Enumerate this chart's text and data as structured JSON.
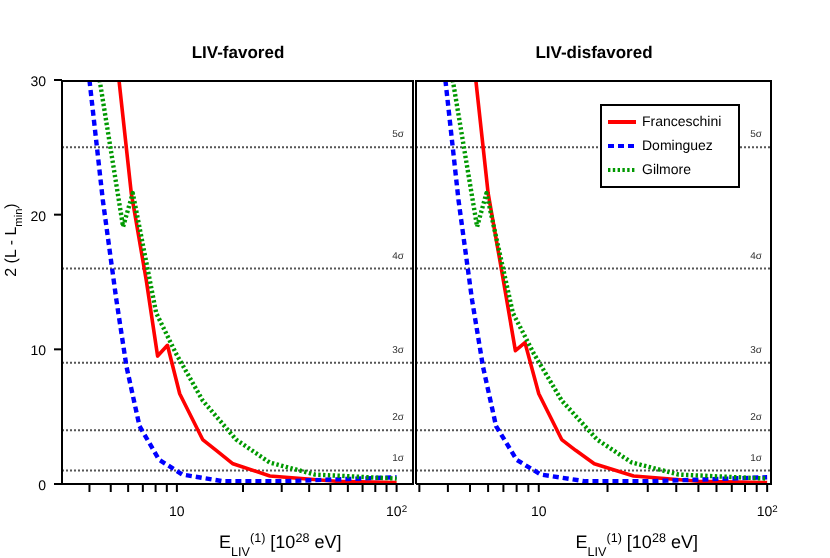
{
  "chart_data": [
    {
      "type": "line",
      "title": "LIV-favored",
      "xlabel": "E$_{LIV}$$^{(1)}$ [10$^{28}$ eV]",
      "ylabel": "2 (L - L$_{min}$)",
      "log": "x",
      "xlim": [
        3,
        120
      ],
      "xticks": [
        {
          "value": 4,
          "label": null
        },
        {
          "value": 5,
          "label": null
        },
        {
          "value": 6,
          "label": null
        },
        {
          "value": 7,
          "label": null
        },
        {
          "value": 8,
          "label": null
        },
        {
          "value": 9,
          "label": null
        },
        {
          "value": 10,
          "label": "10"
        },
        {
          "value": 20,
          "label": null
        },
        {
          "value": 30,
          "label": null
        },
        {
          "value": 40,
          "label": null
        },
        {
          "value": 50,
          "label": null
        },
        {
          "value": 60,
          "label": null
        },
        {
          "value": 70,
          "label": null
        },
        {
          "value": 80,
          "label": null
        },
        {
          "value": 90,
          "label": null
        },
        {
          "value": 100,
          "label": "10$^{2}$"
        }
      ],
      "ylim": [
        0,
        30
      ],
      "yticks": [
        0,
        10,
        20,
        30
      ],
      "grid": false,
      "legend": false,
      "marker": "none",
      "ref_lines": [
        {
          "axis": "y",
          "value": 1,
          "label": "1σ"
        },
        {
          "axis": "y",
          "value": 4,
          "label": "2σ"
        },
        {
          "axis": "y",
          "value": 9,
          "label": "3σ"
        },
        {
          "axis": "y",
          "value": 16,
          "label": "4σ"
        },
        {
          "axis": "y",
          "value": 25,
          "label": "5σ"
        }
      ],
      "series": [
        {
          "color": "#ff0000",
          "line_style": "solid",
          "x": [
            5.45,
            6.2,
            7.26,
            8.17,
            9.06,
            10.3,
            13.1,
            15.1,
            18,
            26.5,
            53,
            100
          ],
          "values": [
            30,
            21.6,
            15.1,
            9.5,
            10.3,
            6.7,
            3.3,
            2.5,
            1.5,
            0.6,
            0.2,
            0.1
          ]
        },
        {
          "color": "#0000ff",
          "line_style": "dashed",
          "x": [
            4.0,
            4.6,
            5.3,
            5.9,
            6.76,
            8.3,
            10.6,
            16.3,
            30,
            100
          ],
          "values": [
            30,
            21.1,
            13.7,
            8.7,
            4.3,
            1.8,
            0.7,
            0.2,
            0.2,
            0.5
          ]
        },
        {
          "color": "#009900",
          "line_style": "dotted",
          "x": [
            4.45,
            5.69,
            6.3,
            8.05,
            9.9,
            13.1,
            18.6,
            26.4,
            42.5,
            100
          ],
          "values": [
            30,
            19.1,
            21.6,
            12.7,
            9.7,
            6.2,
            3.3,
            1.6,
            0.7,
            0.4
          ]
        }
      ]
    },
    {
      "type": "line",
      "title": "LIV-disfavored",
      "xlabel": "E$_{LIV}$$^{(1)}$ [10$^{28}$ eV]",
      "log": "x",
      "xlim": [
        2.9,
        105
      ],
      "xticks": [
        {
          "value": 3,
          "label": null
        },
        {
          "value": 4,
          "label": null
        },
        {
          "value": 5,
          "label": null
        },
        {
          "value": 6,
          "label": null
        },
        {
          "value": 7,
          "label": null
        },
        {
          "value": 8,
          "label": null
        },
        {
          "value": 9,
          "label": null
        },
        {
          "value": 10,
          "label": "10"
        },
        {
          "value": 20,
          "label": null
        },
        {
          "value": 30,
          "label": null
        },
        {
          "value": 40,
          "label": null
        },
        {
          "value": 50,
          "label": null
        },
        {
          "value": 60,
          "label": null
        },
        {
          "value": 70,
          "label": null
        },
        {
          "value": 80,
          "label": null
        },
        {
          "value": 90,
          "label": null
        },
        {
          "value": 100,
          "label": "10$^{2}$"
        }
      ],
      "ylim": [
        0,
        30
      ],
      "yticks": [
        0,
        10,
        20,
        30
      ],
      "tick_labels": "x",
      "grid": false,
      "legend": "top right",
      "marker": "none",
      "ref_lines": [
        {
          "axis": "y",
          "value": 1,
          "label": "1σ"
        },
        {
          "axis": "y",
          "value": 4,
          "label": "2σ"
        },
        {
          "axis": "y",
          "value": 9,
          "label": "3σ"
        },
        {
          "axis": "y",
          "value": 16,
          "label": "4σ"
        },
        {
          "axis": "y",
          "value": 25,
          "label": "5σ"
        }
      ],
      "series": [
        {
          "name": "Franceschini",
          "color": "#ff0000",
          "line_style": "solid",
          "x": [
            5.3,
            6.0,
            7.0,
            7.9,
            8.7,
            10,
            12.6,
            14.5,
            17.5,
            26,
            50,
            100
          ],
          "values": [
            30,
            21.6,
            15.1,
            9.9,
            10.5,
            6.7,
            3.3,
            2.5,
            1.5,
            0.6,
            0.2,
            0.1
          ]
        },
        {
          "name": "Dominguez",
          "color": "#0000ff",
          "line_style": "dashed",
          "x": [
            3.9,
            4.45,
            5.1,
            5.7,
            6.5,
            8,
            10.2,
            16,
            30,
            100
          ],
          "values": [
            30,
            21.1,
            13.7,
            8.7,
            4.3,
            1.8,
            0.7,
            0.2,
            0.2,
            0.5
          ]
        },
        {
          "name": "Gilmore",
          "color": "#009900",
          "line_style": "dotted",
          "x": [
            4.2,
            5.37,
            5.9,
            7.7,
            9.5,
            12.6,
            18,
            25.5,
            41,
            100
          ],
          "values": [
            30,
            19.1,
            21.6,
            12.7,
            9.7,
            6.2,
            3.3,
            1.6,
            0.7,
            0.4
          ]
        }
      ]
    }
  ]
}
